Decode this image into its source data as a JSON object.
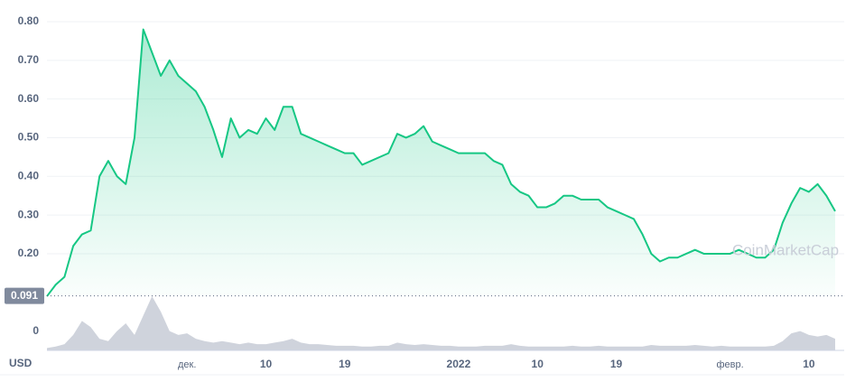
{
  "chart_data": {
    "type": "line",
    "categories": [
      null,
      null,
      null,
      null,
      null,
      null,
      null,
      null,
      null,
      null,
      null,
      null,
      null,
      null,
      null,
      null,
      "дек.",
      null,
      null,
      null,
      null,
      null,
      null,
      null,
      null,
      "10",
      null,
      null,
      null,
      null,
      null,
      null,
      null,
      null,
      "19",
      null,
      null,
      null,
      null,
      null,
      null,
      null,
      null,
      null,
      null,
      null,
      null,
      "2022",
      null,
      null,
      null,
      null,
      null,
      null,
      null,
      null,
      "10",
      null,
      null,
      null,
      null,
      null,
      null,
      null,
      null,
      "19",
      null,
      null,
      null,
      null,
      null,
      null,
      null,
      null,
      null,
      null,
      null,
      null,
      "февр.",
      null,
      null,
      null,
      null,
      null,
      null,
      null,
      null,
      "10",
      null,
      null,
      null
    ],
    "values": [
      0.09,
      0.12,
      0.14,
      0.22,
      0.25,
      0.26,
      0.4,
      0.44,
      0.4,
      0.38,
      0.5,
      0.78,
      0.72,
      0.66,
      0.7,
      0.66,
      0.64,
      0.62,
      0.58,
      0.52,
      0.45,
      0.55,
      0.5,
      0.52,
      0.51,
      0.55,
      0.52,
      0.58,
      0.58,
      0.51,
      0.5,
      0.49,
      0.48,
      0.47,
      0.46,
      0.46,
      0.43,
      0.44,
      0.45,
      0.46,
      0.51,
      0.5,
      0.51,
      0.53,
      0.49,
      0.48,
      0.47,
      0.46,
      0.46,
      0.46,
      0.46,
      0.44,
      0.43,
      0.38,
      0.36,
      0.35,
      0.32,
      0.32,
      0.33,
      0.35,
      0.35,
      0.34,
      0.34,
      0.34,
      0.32,
      0.31,
      0.3,
      0.29,
      0.25,
      0.2,
      0.18,
      0.19,
      0.19,
      0.2,
      0.21,
      0.2,
      0.2,
      0.2,
      0.2,
      0.21,
      0.2,
      0.19,
      0.19,
      0.21,
      0.28,
      0.33,
      0.37,
      0.36,
      0.38,
      0.35,
      0.31
    ],
    "volume": [
      3,
      5,
      8,
      20,
      38,
      30,
      15,
      12,
      25,
      35,
      20,
      45,
      70,
      50,
      25,
      20,
      22,
      15,
      12,
      10,
      12,
      10,
      8,
      10,
      8,
      8,
      10,
      12,
      15,
      10,
      8,
      8,
      7,
      6,
      6,
      6,
      5,
      5,
      6,
      6,
      10,
      8,
      7,
      8,
      7,
      6,
      6,
      5,
      5,
      5,
      6,
      6,
      6,
      8,
      6,
      5,
      5,
      5,
      5,
      5,
      6,
      5,
      5,
      6,
      5,
      5,
      5,
      5,
      5,
      7,
      6,
      6,
      6,
      6,
      7,
      6,
      5,
      6,
      5,
      5,
      5,
      5,
      5,
      6,
      12,
      22,
      25,
      20,
      18,
      20,
      15
    ],
    "color": "#16c784",
    "volume_color": "#c3c8d3",
    "ylim": [
      0,
      0.8
    ],
    "yticks": [
      0,
      {
        "value": 0.2,
        "label": "0.20"
      },
      {
        "value": 0.3,
        "label": "0.30"
      },
      {
        "value": 0.4,
        "label": "0.40"
      },
      {
        "value": 0.5,
        "label": "0.50"
      },
      {
        "value": 0.6,
        "label": "0.60"
      },
      {
        "value": 0.7,
        "label": "0.70"
      },
      {
        "value": 0.8,
        "label": "0.80"
      }
    ],
    "start_price": 0.091,
    "currency": "USD",
    "watermark": "CoinMarketCap",
    "grid": true
  }
}
